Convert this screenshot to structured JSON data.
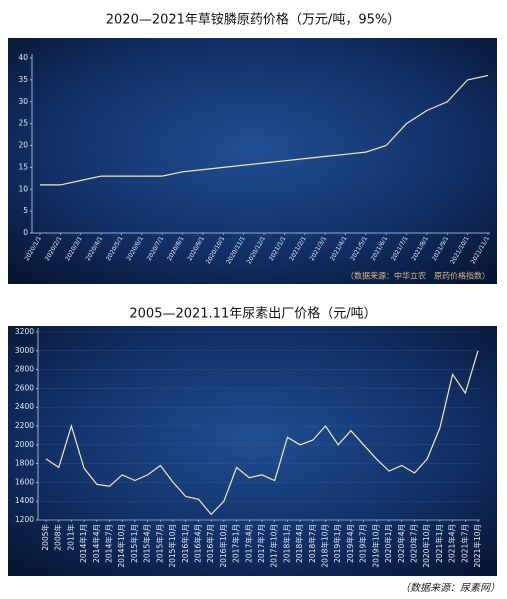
{
  "chart_data": [
    {
      "type": "line",
      "title": "2020—2021年草铵膦原药价格（万元/吨，95%）",
      "categories": [
        "2020/1/1",
        "2020/2/1",
        "2020/3/1",
        "2020/4/1",
        "2020/5/1",
        "2020/6/1",
        "2020/7/1",
        "2020/8/1",
        "2020/9/1",
        "2020/10/1",
        "2020/11/1",
        "2020/12/1",
        "2021/1/1",
        "2021/2/1",
        "2021/3/1",
        "2021/4/1",
        "2021/5/1",
        "2021/6/1",
        "2021/7/1",
        "2021/8/1",
        "2021/9/1",
        "2021/10/1",
        "2021/11/1"
      ],
      "values": [
        11,
        11,
        12,
        13,
        13,
        13,
        13,
        14,
        14.5,
        15,
        15.5,
        16,
        16.5,
        17,
        17.5,
        18,
        18.5,
        20,
        25,
        28,
        30,
        35,
        36
      ],
      "color": "#f2e8b4",
      "ylim": [
        0,
        40
      ],
      "yticks": [
        0,
        5,
        10,
        15,
        20,
        25,
        30,
        35,
        40
      ],
      "grid": false,
      "annotation": "（数据来源：中华立农　原药价格指数）"
    },
    {
      "type": "line",
      "title": "2005—2021.11年尿素出厂价格（元/吨）",
      "categories": [
        "2005年",
        "2008年",
        "2011年",
        "2014年1月",
        "2014年4月",
        "2014年7月",
        "2014年10月",
        "2015年1月",
        "2015年4月",
        "2015年7月",
        "2015年10月",
        "2016年1月",
        "2016年4月",
        "2016年7月",
        "2016年10月",
        "2017年1月",
        "2017年4月",
        "2017年7月",
        "2017年10月",
        "2018年1月",
        "2018年4月",
        "2018年7月",
        "2018年10月",
        "2019年1月",
        "2019年4月",
        "2019年7月",
        "2019年10月",
        "2020年1月",
        "2020年4月",
        "2020年7月",
        "2020年10月",
        "2021年1月",
        "2021年4月",
        "2021年7月",
        "2021年10月"
      ],
      "values": [
        1850,
        1760,
        2200,
        1750,
        1580,
        1560,
        1680,
        1620,
        1680,
        1780,
        1600,
        1450,
        1420,
        1260,
        1400,
        1760,
        1650,
        1680,
        1620,
        2080,
        2000,
        2050,
        2200,
        2000,
        2150,
        2000,
        1850,
        1720,
        1780,
        1700,
        1850,
        2180,
        2750,
        2550,
        3000
      ],
      "color": "#f2e8b4",
      "ylim": [
        1200,
        3200
      ],
      "yticks": [
        1200,
        1400,
        1600,
        1800,
        2000,
        2200,
        2400,
        2600,
        2800,
        3000,
        3200
      ],
      "grid": true,
      "annotation": "（数据来源：尿素网）"
    }
  ]
}
